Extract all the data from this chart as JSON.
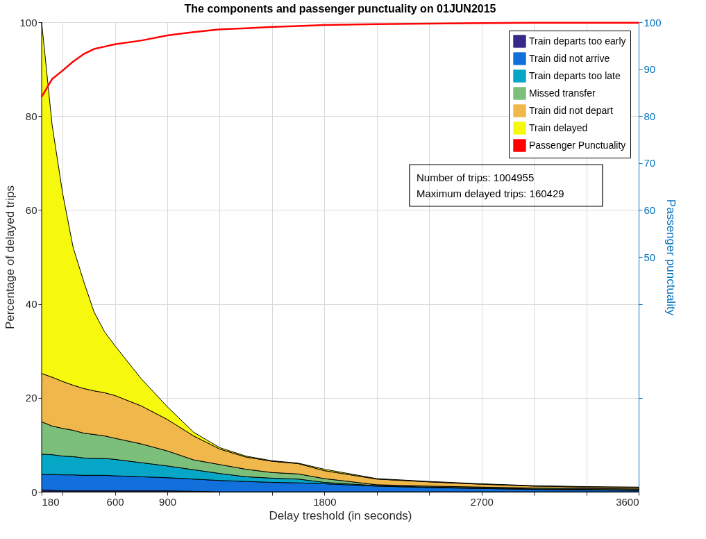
{
  "chart_data": {
    "type": "area",
    "stacked": true,
    "title": "The components and passenger punctuality on 01JUN2015",
    "xlabel": "Delay treshold (in seconds)",
    "ylabel": "Percentage of delayed trips",
    "y2label": "Passenger punctuality",
    "x": [
      180,
      240,
      300,
      360,
      420,
      480,
      540,
      600,
      750,
      900,
      1050,
      1200,
      1350,
      1500,
      1650,
      1800,
      2100,
      2400,
      2700,
      3000,
      3300,
      3600
    ],
    "series": [
      {
        "name": "Train departs too early",
        "color": "#352a87",
        "values": [
          0.4,
          0.3,
          0.2,
          0.2,
          0.2,
          0.2,
          0.2,
          0.2,
          0.2,
          0.2,
          0.1,
          0,
          0,
          0,
          0,
          0,
          0,
          0,
          0,
          0,
          0,
          0
        ]
      },
      {
        "name": "Train did not arrive",
        "color": "#1170db",
        "values": [
          3.3,
          3.4,
          3.4,
          3.4,
          3.3,
          3.3,
          3.3,
          3.2,
          3.0,
          2.8,
          2.6,
          2.4,
          2.2,
          2.0,
          1.9,
          1.7,
          1.2,
          0.9,
          0.7,
          0.5,
          0.4,
          0.3
        ]
      },
      {
        "name": "Train departs too late",
        "color": "#06a7c6",
        "values": [
          4.3,
          4.2,
          4.0,
          3.9,
          3.7,
          3.6,
          3.6,
          3.5,
          3.0,
          2.5,
          2.0,
          1.5,
          1.0,
          0.9,
          0.8,
          0.3,
          0.1,
          0.1,
          0.1,
          0.1,
          0.1,
          0.1
        ]
      },
      {
        "name": "Missed transfer",
        "color": "#7cbf7b",
        "values": [
          6.9,
          6.1,
          5.9,
          5.6,
          5.3,
          5.1,
          4.8,
          4.5,
          4.0,
          3.2,
          2.1,
          1.9,
          1.6,
          1.2,
          1.1,
          0.8,
          0.2,
          0.2,
          0.2,
          0.2,
          0.2,
          0.2
        ]
      },
      {
        "name": "Train did not depart",
        "color": "#f0b74a",
        "values": [
          10.3,
          10.4,
          10.0,
          9.6,
          9.5,
          9.3,
          9.2,
          9.1,
          8.1,
          6.7,
          5.1,
          3.3,
          2.6,
          2.4,
          2.2,
          1.7,
          1.2,
          0.9,
          0.6,
          0.4,
          0.3,
          0.3
        ]
      },
      {
        "name": "Train delayed",
        "color": "#f6f90d",
        "values": [
          74.8,
          53.7,
          40.1,
          29.4,
          22.9,
          16.8,
          13.0,
          10.6,
          5.8,
          2.7,
          0.8,
          0.3,
          0.2,
          0.1,
          0.1,
          0.3,
          0.1,
          0.1,
          0.1,
          0.1,
          0.1,
          0.1
        ]
      },
      {
        "name": "Passenger Punctuality",
        "type": "line",
        "axis": "y2",
        "color": "#ff0000",
        "values": [
          84.1,
          87.9,
          89.7,
          91.6,
          93.2,
          94.3,
          94.8,
          95.3,
          96.1,
          97.2,
          97.9,
          98.5,
          98.7,
          99.0,
          99.2,
          99.4,
          99.6,
          99.7,
          99.8,
          99.9,
          99.9,
          99.9
        ]
      }
    ],
    "xlim": [
      180,
      3600
    ],
    "xticks": [
      180,
      {
        "value": 300,
        "label": null
      },
      600,
      900,
      {
        "value": 1200,
        "label": null
      },
      {
        "value": 1500,
        "label": null
      },
      1800,
      {
        "value": 2100,
        "label": null
      },
      {
        "value": 2400,
        "label": null
      },
      2700,
      {
        "value": 3000,
        "label": null
      },
      {
        "value": 3300,
        "label": null
      },
      3600
    ],
    "ylim": [
      0,
      100
    ],
    "yticks": [
      0,
      20,
      40,
      60,
      80,
      100
    ],
    "y2lim": [
      0,
      100
    ],
    "y2ticks": [
      {
        "value": 20,
        "label": null
      },
      {
        "value": 40,
        "label": null
      },
      50,
      60,
      70,
      80,
      90,
      100
    ],
    "grid": true,
    "legend": "top right",
    "annotations": [
      "Number of trips: 1004955",
      "Maximum delayed trips: 160429"
    ]
  }
}
